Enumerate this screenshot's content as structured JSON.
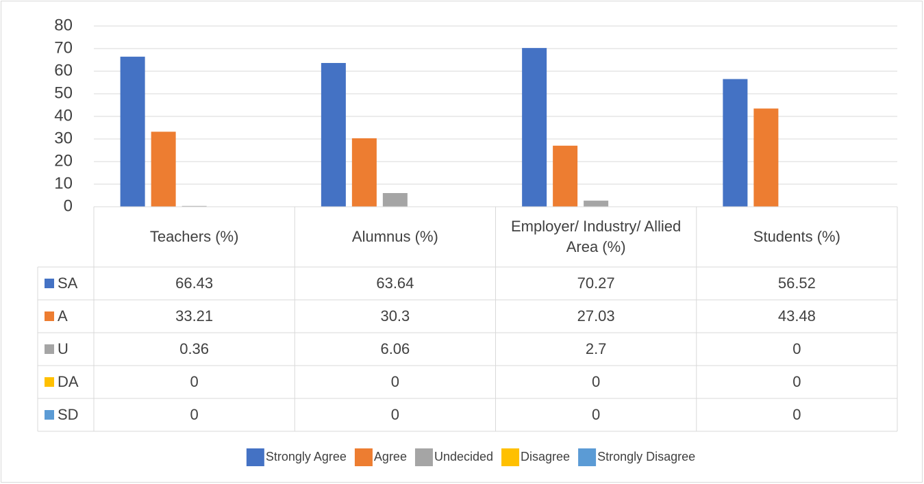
{
  "chart_data": {
    "type": "bar",
    "categories": [
      "Teachers (%)",
      "Alumnus (%)",
      "Employer/ Industry/ Allied Area (%)",
      "Students (%)"
    ],
    "series": [
      {
        "name": "Strongly Agree",
        "label": "SA",
        "color": "#4472c4",
        "values": [
          66.43,
          63.64,
          70.27,
          56.52
        ]
      },
      {
        "name": "Agree",
        "label": "A",
        "color": "#ed7d31",
        "values": [
          33.21,
          30.3,
          27.03,
          43.48
        ]
      },
      {
        "name": "Undecided",
        "label": "U",
        "color": "#a5a5a5",
        "values": [
          0.36,
          6.06,
          2.7,
          0
        ]
      },
      {
        "name": "Disagree",
        "label": "DA",
        "color": "#ffc000",
        "values": [
          0,
          0,
          0,
          0
        ]
      },
      {
        "name": "Strongly Disagree",
        "label": "SD",
        "color": "#5b9bd5",
        "values": [
          0,
          0,
          0,
          0
        ]
      }
    ],
    "ylim": [
      0,
      80
    ],
    "yticks": [
      0,
      10,
      20,
      30,
      40,
      50,
      60,
      70,
      80
    ],
    "grid": true,
    "data_table": true,
    "legend": "bottom"
  }
}
